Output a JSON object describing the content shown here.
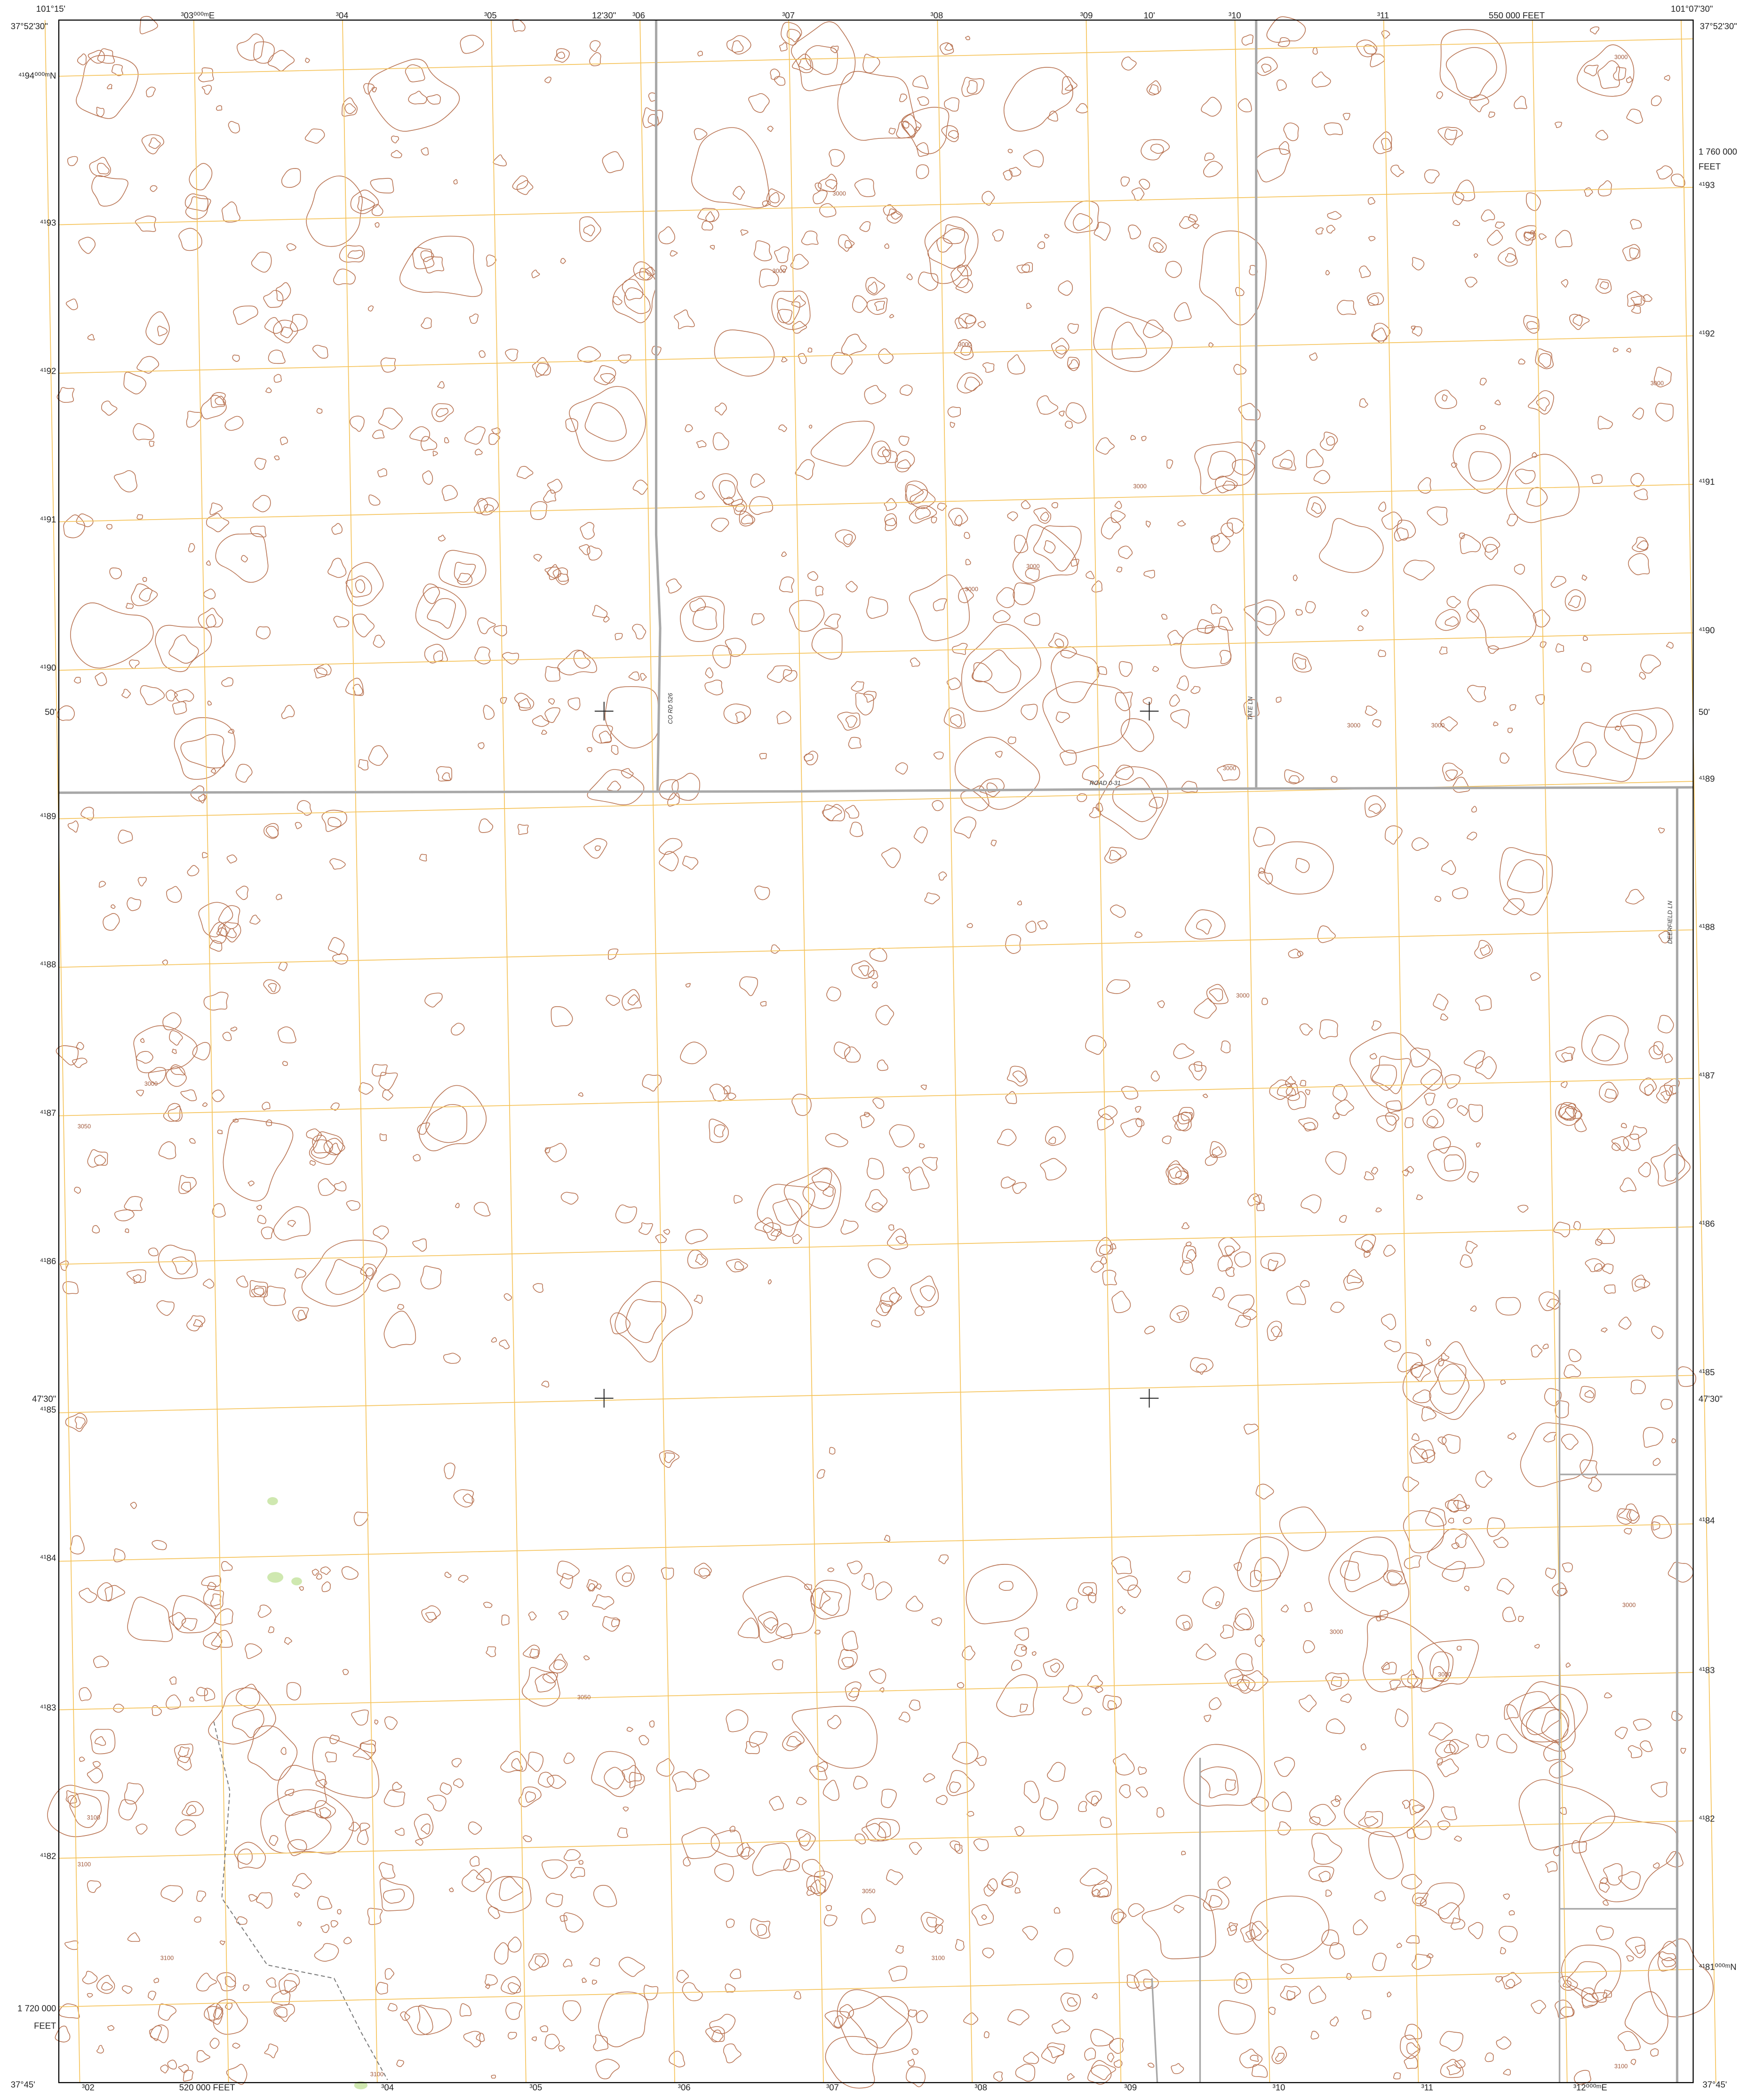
{
  "corners": {
    "top_left_lon": "101°15'",
    "top_left_lat": "37°52'30\"",
    "top_right_lon": "101°07'30\"",
    "top_right_lat": "37°52'30\"",
    "bottom_left_lat": "37°45'",
    "bottom_right_lat": "37°45'"
  },
  "top_labels": [
    "³03⁰⁰⁰ᵐE",
    "³04",
    "³05",
    "12'30\"",
    "³06",
    "³07",
    "³08",
    "³09",
    "10'",
    "³10",
    "³11",
    "550 000 FEET"
  ],
  "left_labels": [
    "⁴¹94⁰⁰⁰ᵐN",
    "⁴¹93",
    "⁴¹92",
    "⁴¹91",
    "⁴¹90",
    "50'",
    "⁴¹89",
    "⁴¹88",
    "⁴¹87",
    "⁴¹86",
    "47'30\"",
    "⁴¹85",
    "⁴¹84",
    "⁴¹83",
    "⁴¹82",
    "1 720 000",
    "FEET"
  ],
  "right_labels": [
    "1 760 000",
    "FEET",
    "⁴¹93",
    "⁴¹92",
    "⁴¹91",
    "⁴¹90",
    "50'",
    "⁴¹89",
    "⁴¹88",
    "⁴¹87",
    "⁴¹86",
    "⁴¹85",
    "47'30\"",
    "⁴¹84",
    "⁴¹83",
    "⁴¹82",
    "⁴¹81⁰⁰⁰ᵐN"
  ],
  "bottom_labels": [
    "³02",
    "520 000 FEET",
    "³04",
    "³05",
    "³06",
    "³07",
    "³08",
    "³09",
    "³10",
    "³11",
    "³12⁰⁰⁰ᵐE"
  ],
  "road_labels": [
    "CO RD 526",
    "ROAD 0-31",
    "TATE LN",
    "DEERFIELD LN"
  ],
  "contour_labels": [
    "3000",
    "3000",
    "3000",
    "3000",
    "3000",
    "3000",
    "3000",
    "3000",
    "3000",
    "3000",
    "3000",
    "3000",
    "3050",
    "3000",
    "3000",
    "3050",
    "3100",
    "3100",
    "3100",
    "3050",
    "3100",
    "3100",
    "3100",
    "3000",
    "3000"
  ]
}
